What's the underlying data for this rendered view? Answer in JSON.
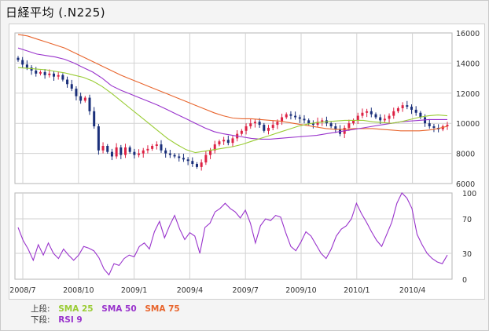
{
  "header": {
    "title": "日経平均 (.N225)"
  },
  "legend": {
    "upper": {
      "label": "上段:",
      "items": [
        {
          "name": "SMA 25",
          "color": "#99cc33"
        },
        {
          "name": "SMA 50",
          "color": "#9933cc"
        },
        {
          "name": "SMA 75",
          "color": "#e8642c"
        }
      ]
    },
    "lower": {
      "label": "下段:",
      "items": [
        {
          "name": "RSI 9",
          "color": "#9933cc"
        }
      ]
    }
  },
  "chart_data": {
    "type": "candlestick",
    "x_labels": [
      "2008/7",
      "2008/10",
      "2009/1",
      "2009/4",
      "2009/7",
      "2009/10",
      "2010/1",
      "2010/4"
    ],
    "price_axis": {
      "ticks": [
        16000,
        14000,
        12000,
        10000,
        8000,
        6000
      ],
      "ylim": [
        6000,
        16000
      ]
    },
    "rsi_axis": {
      "ticks": [
        100,
        70,
        30,
        0
      ],
      "ylim": [
        0,
        100
      ]
    },
    "colors": {
      "up": "#dd2244",
      "down": "#1a2f7a"
    },
    "closes": [
      14200,
      13900,
      13700,
      13500,
      13300,
      13400,
      13200,
      13300,
      13100,
      13200,
      12900,
      12600,
      12300,
      11800,
      11500,
      11700,
      10800,
      9800,
      8200,
      8500,
      8100,
      7800,
      8400,
      7900,
      8400,
      8100,
      7900,
      8000,
      8200,
      8300,
      8500,
      8600,
      8200,
      8000,
      7900,
      7800,
      7700,
      7600,
      7500,
      7300,
      7100,
      7400,
      7900,
      8200,
      8600,
      8800,
      8900,
      8700,
      9000,
      9300,
      9500,
      9800,
      10000,
      10100,
      9900,
      9500,
      9700,
      9900,
      10100,
      10400,
      10600,
      10500,
      10400,
      10300,
      10200,
      10000,
      9900,
      10100,
      10200,
      10000,
      9800,
      9600,
      9300,
      9700,
      10000,
      10200,
      10500,
      10700,
      10800,
      10600,
      10400,
      10200,
      10300,
      10500,
      10800,
      11000,
      11200,
      11100,
      10900,
      10700,
      10400,
      10000,
      9800,
      9700,
      9600,
      9800,
      9900
    ],
    "sma25": [
      13700,
      13650,
      13600,
      13550,
      13450,
      13350,
      13200,
      13050,
      12800,
      12450,
      12000,
      11500,
      11000,
      10500,
      10000,
      9500,
      9000,
      8600,
      8250,
      8050,
      8150,
      8250,
      8350,
      8450,
      8600,
      8800,
      9000,
      9200,
      9400,
      9600,
      9800,
      9950,
      10050,
      10100,
      10150,
      10200,
      10200,
      10200,
      10100,
      10050,
      10000,
      10100,
      10250,
      10400,
      10500,
      10550,
      10500
    ],
    "sma50": [
      15000,
      14800,
      14600,
      14500,
      14400,
      14250,
      14000,
      13700,
      13400,
      13000,
      12500,
      12200,
      11950,
      11700,
      11450,
      11200,
      10900,
      10600,
      10300,
      10000,
      9700,
      9450,
      9300,
      9200,
      9100,
      9000,
      8950,
      8950,
      9000,
      9050,
      9100,
      9150,
      9200,
      9300,
      9400,
      9500,
      9600,
      9700,
      9800,
      9900,
      10000,
      10100,
      10150,
      10200,
      10250,
      10250,
      10250
    ],
    "sma75": [
      15900,
      15800,
      15600,
      15400,
      15200,
      15000,
      14700,
      14400,
      14100,
      13800,
      13500,
      13200,
      12950,
      12700,
      12450,
      12200,
      11950,
      11700,
      11450,
      11200,
      10950,
      10700,
      10500,
      10350,
      10300,
      10300,
      10250,
      10200,
      10150,
      10050,
      9950,
      9850,
      9750,
      9650,
      9600,
      9600,
      9650,
      9650,
      9650,
      9600,
      9550,
      9500,
      9500,
      9500,
      9550,
      9650,
      9800
    ],
    "rsi9": [
      60,
      45,
      35,
      22,
      40,
      28,
      42,
      30,
      24,
      35,
      28,
      22,
      28,
      38,
      36,
      33,
      25,
      12,
      5,
      18,
      16,
      24,
      28,
      26,
      38,
      42,
      35,
      55,
      67,
      48,
      62,
      74,
      58,
      46,
      54,
      50,
      30,
      60,
      65,
      78,
      82,
      88,
      82,
      78,
      71,
      80,
      65,
      42,
      62,
      70,
      68,
      74,
      72,
      54,
      38,
      33,
      43,
      55,
      50,
      40,
      30,
      24,
      35,
      50,
      58,
      62,
      70,
      88,
      76,
      66,
      55,
      45,
      38,
      52,
      66,
      88,
      100,
      94,
      82,
      52,
      40,
      30,
      24,
      20,
      18,
      28
    ]
  }
}
